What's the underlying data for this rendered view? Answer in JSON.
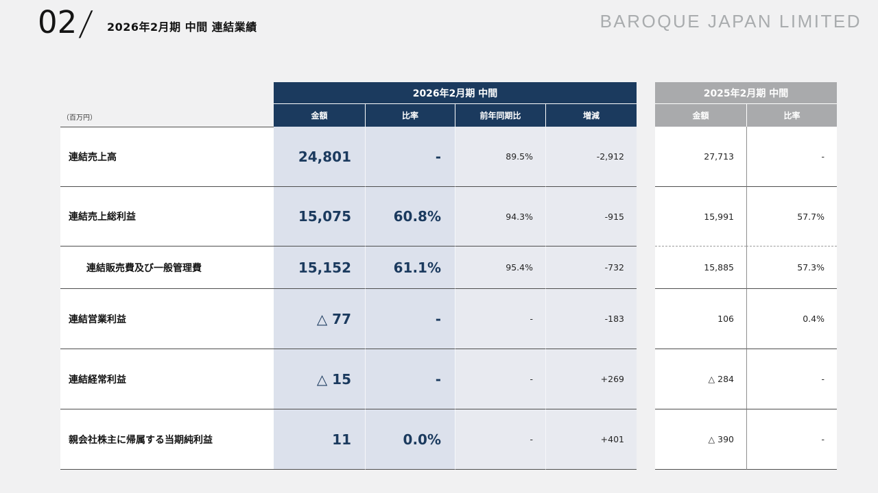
{
  "page": {
    "number": "02",
    "slash": "/",
    "title": "2026年2月期 中間 連結業績",
    "brand": "BAROQUE JAPAN LIMITED",
    "unit_note": "（百万円）"
  },
  "colors": {
    "accent_navy": "#1b3a5e",
    "header_gray": "#a9aaac",
    "shade_primary": "#dce1ec",
    "shade_secondary": "#e8eaf0",
    "page_background": "#f1f1f2"
  },
  "table": {
    "groups": [
      {
        "label": "2026年2月期 中間"
      },
      {
        "label": "2025年2月期 中間"
      }
    ],
    "columns_2026": [
      "金額",
      "比率",
      "前年同期比",
      "増減"
    ],
    "columns_2025": [
      "金額",
      "比率"
    ],
    "rows": [
      {
        "label": "連結売上高",
        "c2026": [
          "24,801",
          "-",
          "89.5%",
          "-2,912"
        ],
        "c2025": [
          "27,713",
          "-"
        ]
      },
      {
        "label": "連結売上総利益",
        "c2026": [
          "15,075",
          "60.8%",
          "94.3%",
          "-915"
        ],
        "c2025": [
          "15,991",
          "57.7%"
        ]
      },
      {
        "label": "連結販売費及び一般管理費",
        "c2026": [
          "15,152",
          "61.1%",
          "95.4%",
          "-732"
        ],
        "c2025": [
          "15,885",
          "57.3%"
        ]
      },
      {
        "label": "連結営業利益",
        "c2026": [
          "△ 77",
          "-",
          "-",
          "-183"
        ],
        "c2025": [
          "106",
          "0.4%"
        ]
      },
      {
        "label": "連結経常利益",
        "c2026": [
          "△ 15",
          "-",
          "-",
          "+269"
        ],
        "c2025": [
          "△ 284",
          "-"
        ]
      },
      {
        "label": "親会社株主に帰属する当期純利益",
        "c2026": [
          "11",
          "0.0%",
          "-",
          "+401"
        ],
        "c2025": [
          "△ 390",
          "-"
        ]
      }
    ]
  }
}
